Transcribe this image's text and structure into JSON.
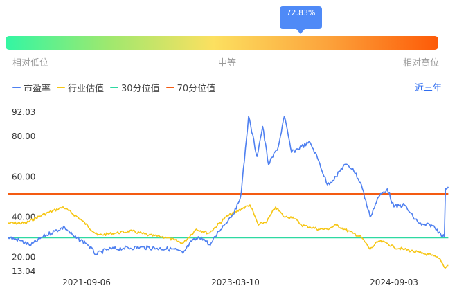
{
  "gauge": {
    "percentile_label": "72.83%",
    "percentile_value": 72.83,
    "low_label": "相对低位",
    "mid_label": "中等",
    "high_label": "相对高位",
    "gradient_colors": [
      "#33f6a3",
      "#9fe86e",
      "#fce060",
      "#fca43c",
      "#fd5a07"
    ]
  },
  "range_selector": {
    "label": "近三年"
  },
  "chart_data": {
    "type": "line",
    "title": "",
    "xlabel": "",
    "ylabel": "",
    "ylim": [
      13.04,
      92.03
    ],
    "y_ticks": [
      "92.03",
      "80.00",
      "60.00",
      "40.00",
      "20.00",
      "13.04"
    ],
    "y_tick_values": [
      92.03,
      80,
      60,
      40,
      20,
      13.04
    ],
    "x_ticks": [
      "2021-09-06",
      "2023-03-10",
      "2024-09-03"
    ],
    "x_tick_dates": [
      "2021-09-06",
      "2023-03-10",
      "2024-09-03"
    ],
    "legend_position": "top-left",
    "grid": false,
    "series": [
      {
        "name": "市盈率",
        "color": "#4f80f0",
        "points": [
          [
            "2020-12-01",
            30
          ],
          [
            "2021-01-10",
            28.5
          ],
          [
            "2021-02-20",
            26
          ],
          [
            "2021-04-01",
            30
          ],
          [
            "2021-05-15",
            33
          ],
          [
            "2021-06-20",
            35
          ],
          [
            "2021-07-25",
            30
          ],
          [
            "2021-09-06",
            27
          ],
          [
            "2021-10-10",
            21.5
          ],
          [
            "2021-11-20",
            24
          ],
          [
            "2022-01-15",
            24.5
          ],
          [
            "2022-03-15",
            25
          ],
          [
            "2022-05-15",
            24.5
          ],
          [
            "2022-07-15",
            24
          ],
          [
            "2022-08-15",
            22
          ],
          [
            "2022-09-15",
            28
          ],
          [
            "2022-10-20",
            30
          ],
          [
            "2022-11-20",
            26
          ],
          [
            "2022-12-20",
            33
          ],
          [
            "2023-01-25",
            39
          ],
          [
            "2023-02-20",
            44
          ],
          [
            "2023-03-10",
            52
          ],
          [
            "2023-04-05",
            90
          ],
          [
            "2023-05-05",
            70
          ],
          [
            "2023-05-25",
            85
          ],
          [
            "2023-06-15",
            66
          ],
          [
            "2023-07-20",
            75
          ],
          [
            "2023-08-10",
            90
          ],
          [
            "2023-09-05",
            72
          ],
          [
            "2023-10-10",
            75
          ],
          [
            "2023-11-10",
            77
          ],
          [
            "2023-12-10",
            68
          ],
          [
            "2024-01-10",
            56
          ],
          [
            "2024-02-10",
            60
          ],
          [
            "2024-03-10",
            66
          ],
          [
            "2024-04-10",
            64
          ],
          [
            "2024-05-10",
            56
          ],
          [
            "2024-06-10",
            40
          ],
          [
            "2024-07-10",
            50
          ],
          [
            "2024-08-10",
            54
          ],
          [
            "2024-09-03",
            45
          ],
          [
            "2024-10-10",
            46
          ],
          [
            "2024-11-10",
            40
          ],
          [
            "2024-12-10",
            36
          ],
          [
            "2025-01-15",
            36
          ],
          [
            "2025-02-15",
            32
          ],
          [
            "2025-03-01",
            30
          ],
          [
            "2025-03-05",
            54
          ],
          [
            "2025-03-15",
            55
          ]
        ]
      },
      {
        "name": "行业估值",
        "color": "#f6c614",
        "points": [
          [
            "2020-12-01",
            37
          ],
          [
            "2021-02-01",
            37
          ],
          [
            "2021-04-01",
            41
          ],
          [
            "2021-06-15",
            45
          ],
          [
            "2021-08-15",
            39
          ],
          [
            "2021-10-15",
            31
          ],
          [
            "2021-12-15",
            32
          ],
          [
            "2022-02-15",
            33
          ],
          [
            "2022-04-15",
            31
          ],
          [
            "2022-06-15",
            30
          ],
          [
            "2022-08-15",
            27
          ],
          [
            "2022-10-01",
            34
          ],
          [
            "2022-11-15",
            32
          ],
          [
            "2023-01-15",
            40
          ],
          [
            "2023-03-10",
            44
          ],
          [
            "2023-04-10",
            46
          ],
          [
            "2023-05-10",
            36
          ],
          [
            "2023-06-10",
            38
          ],
          [
            "2023-07-10",
            45
          ],
          [
            "2023-08-10",
            40
          ],
          [
            "2023-09-10",
            40
          ],
          [
            "2023-10-10",
            36
          ],
          [
            "2023-11-10",
            35
          ],
          [
            "2023-12-10",
            34
          ],
          [
            "2024-01-10",
            34
          ],
          [
            "2024-02-10",
            36
          ],
          [
            "2024-03-10",
            34
          ],
          [
            "2024-04-10",
            32
          ],
          [
            "2024-05-10",
            30
          ],
          [
            "2024-06-10",
            24
          ],
          [
            "2024-07-10",
            28
          ],
          [
            "2024-08-10",
            27
          ],
          [
            "2024-09-03",
            25
          ],
          [
            "2024-10-10",
            24
          ],
          [
            "2024-11-10",
            23
          ],
          [
            "2024-12-10",
            22
          ],
          [
            "2025-01-15",
            21
          ],
          [
            "2025-02-15",
            19
          ],
          [
            "2025-03-01",
            15
          ],
          [
            "2025-03-15",
            16
          ]
        ]
      },
      {
        "name": "30分位值",
        "color": "#2ed9a2",
        "points": [
          [
            "2020-12-01",
            29.8
          ],
          [
            "2025-03-15",
            29.8
          ]
        ]
      },
      {
        "name": "70分位值",
        "color": "#f45b12",
        "points": [
          [
            "2020-12-01",
            51.5
          ],
          [
            "2025-03-15",
            51.5
          ]
        ]
      }
    ]
  }
}
